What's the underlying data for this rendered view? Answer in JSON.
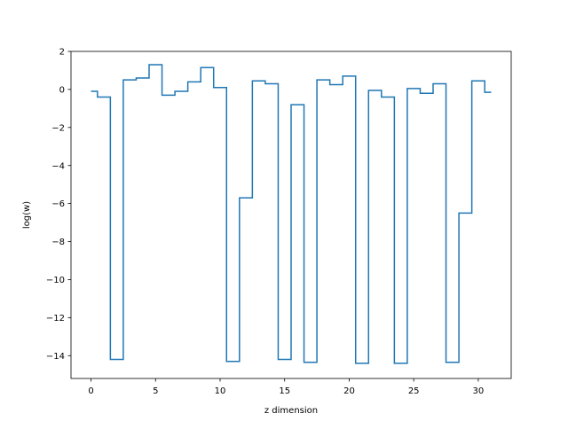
{
  "chart_data": {
    "type": "line",
    "drawstyle": "steps-mid",
    "title": "",
    "xlabel": "z dimension",
    "ylabel": "log(w)",
    "xlim": [
      -1.55,
      32.55
    ],
    "ylim": [
      -15.2,
      2.0
    ],
    "xticks": [
      0,
      5,
      10,
      15,
      20,
      25,
      30
    ],
    "xtick_labels": [
      "0",
      "5",
      "10",
      "15",
      "20",
      "25",
      "30"
    ],
    "yticks": [
      2,
      0,
      -2,
      -4,
      -6,
      -8,
      -10,
      -12,
      -14
    ],
    "ytick_labels": [
      "2",
      "0",
      "−2",
      "−4",
      "−6",
      "−8",
      "−10",
      "−12",
      "−14"
    ],
    "grid": false,
    "legend": "none",
    "series": [
      {
        "color": "#1f77b4",
        "x": [
          0,
          1,
          2,
          3,
          4,
          5,
          6,
          7,
          8,
          9,
          10,
          11,
          12,
          13,
          14,
          15,
          16,
          17,
          18,
          19,
          20,
          21,
          22,
          23,
          24,
          25,
          26,
          27,
          28,
          29,
          30,
          31
        ],
        "y": [
          -0.1,
          -0.4,
          -14.2,
          0.5,
          0.6,
          1.3,
          -0.3,
          -0.1,
          0.4,
          1.15,
          0.1,
          -14.3,
          -5.7,
          0.45,
          0.3,
          -14.2,
          -0.8,
          -14.35,
          0.5,
          0.25,
          0.7,
          -14.4,
          -0.05,
          -0.4,
          -14.4,
          0.05,
          -0.2,
          0.3,
          -14.35,
          -6.5,
          0.45,
          -0.15
        ]
      }
    ]
  }
}
